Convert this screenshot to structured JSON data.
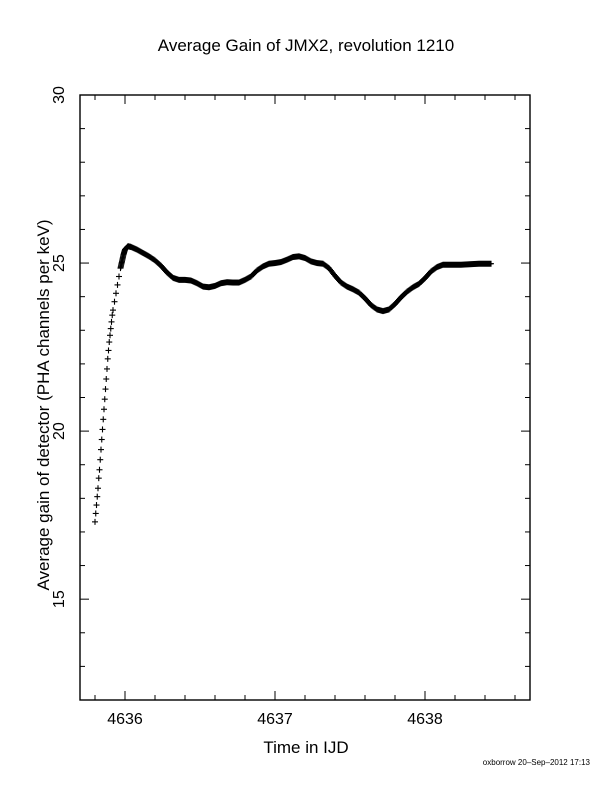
{
  "chart_data": {
    "type": "scatter",
    "title": "Average Gain of JMX2, revolution 1210",
    "xlabel": "Time in IJD",
    "ylabel": "Average gain of detector (PHA channels per keV)",
    "xlim": [
      4635.7,
      4638.7
    ],
    "ylim": [
      12,
      30
    ],
    "x_ticks": [
      4636,
      4637,
      4638
    ],
    "y_ticks": [
      15,
      20,
      25,
      30
    ],
    "grid": false,
    "marker": "+",
    "series": [
      {
        "points": [
          [
            4635.8,
            17.3
          ],
          [
            4635.805,
            17.55
          ],
          [
            4635.81,
            17.8
          ],
          [
            4635.815,
            18.05
          ],
          [
            4635.82,
            18.3
          ],
          [
            4635.825,
            18.6
          ],
          [
            4635.83,
            18.85
          ],
          [
            4635.835,
            19.15
          ],
          [
            4635.84,
            19.45
          ],
          [
            4635.845,
            19.75
          ],
          [
            4635.85,
            20.05
          ],
          [
            4635.855,
            20.35
          ],
          [
            4635.86,
            20.65
          ],
          [
            4635.865,
            20.95
          ],
          [
            4635.87,
            21.25
          ],
          [
            4635.875,
            21.55
          ],
          [
            4635.88,
            21.85
          ],
          [
            4635.885,
            22.15
          ],
          [
            4635.89,
            22.4
          ],
          [
            4635.895,
            22.65
          ],
          [
            4635.9,
            22.85
          ],
          [
            4635.905,
            23.05
          ],
          [
            4635.91,
            23.25
          ],
          [
            4635.915,
            23.45
          ],
          [
            4635.92,
            23.6
          ],
          [
            4635.93,
            23.85
          ],
          [
            4635.94,
            24.1
          ],
          [
            4635.95,
            24.35
          ],
          [
            4635.96,
            24.6
          ],
          [
            4635.97,
            24.85
          ],
          [
            4635.98,
            25.05
          ],
          [
            4635.99,
            25.25
          ],
          [
            4636.0,
            25.4
          ],
          [
            4636.02,
            25.5
          ],
          [
            4636.04,
            25.48
          ],
          [
            4636.08,
            25.4
          ],
          [
            4636.12,
            25.3
          ],
          [
            4636.16,
            25.2
          ],
          [
            4636.2,
            25.08
          ],
          [
            4636.24,
            24.92
          ],
          [
            4636.28,
            24.72
          ],
          [
            4636.32,
            24.56
          ],
          [
            4636.36,
            24.5
          ],
          [
            4636.4,
            24.5
          ],
          [
            4636.44,
            24.48
          ],
          [
            4636.48,
            24.4
          ],
          [
            4636.52,
            24.3
          ],
          [
            4636.56,
            24.28
          ],
          [
            4636.6,
            24.32
          ],
          [
            4636.64,
            24.4
          ],
          [
            4636.68,
            24.43
          ],
          [
            4636.72,
            24.42
          ],
          [
            4636.76,
            24.42
          ],
          [
            4636.8,
            24.5
          ],
          [
            4636.84,
            24.6
          ],
          [
            4636.88,
            24.78
          ],
          [
            4636.92,
            24.9
          ],
          [
            4636.96,
            24.98
          ],
          [
            4637.0,
            25.0
          ],
          [
            4637.04,
            25.03
          ],
          [
            4637.08,
            25.1
          ],
          [
            4637.12,
            25.18
          ],
          [
            4637.16,
            25.2
          ],
          [
            4637.2,
            25.15
          ],
          [
            4637.24,
            25.05
          ],
          [
            4637.28,
            25.0
          ],
          [
            4637.32,
            24.98
          ],
          [
            4637.36,
            24.85
          ],
          [
            4637.4,
            24.62
          ],
          [
            4637.44,
            24.42
          ],
          [
            4637.48,
            24.3
          ],
          [
            4637.52,
            24.22
          ],
          [
            4637.56,
            24.12
          ],
          [
            4637.6,
            23.95
          ],
          [
            4637.64,
            23.75
          ],
          [
            4637.68,
            23.62
          ],
          [
            4637.72,
            23.57
          ],
          [
            4637.76,
            23.62
          ],
          [
            4637.8,
            23.78
          ],
          [
            4637.84,
            23.98
          ],
          [
            4637.88,
            24.15
          ],
          [
            4637.92,
            24.28
          ],
          [
            4637.96,
            24.38
          ],
          [
            4638.0,
            24.55
          ],
          [
            4638.04,
            24.75
          ],
          [
            4638.08,
            24.88
          ],
          [
            4638.12,
            24.95
          ],
          [
            4638.16,
            24.95
          ],
          [
            4638.2,
            24.95
          ],
          [
            4638.24,
            24.95
          ],
          [
            4638.28,
            24.96
          ],
          [
            4638.32,
            24.97
          ],
          [
            4638.36,
            24.98
          ],
          [
            4638.4,
            24.98
          ],
          [
            4638.44,
            24.98
          ]
        ]
      }
    ]
  },
  "footer": "oxborrow 20–Sep–2012 17:13"
}
